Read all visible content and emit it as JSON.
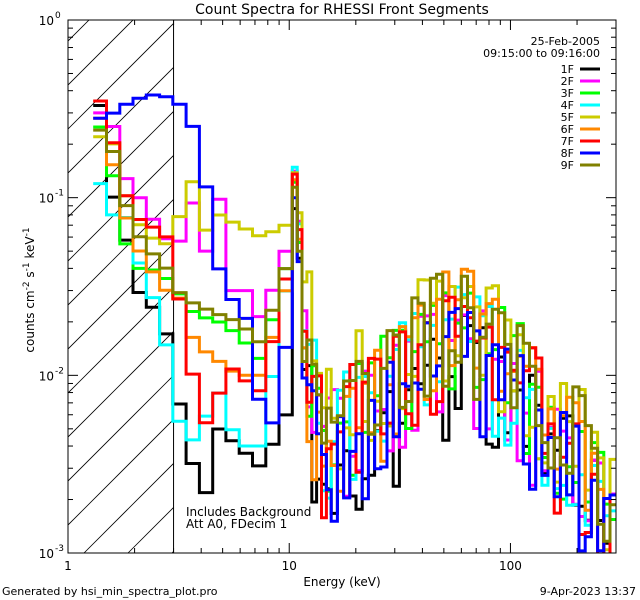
{
  "chart_data": {
    "type": "line",
    "title": "Count Spectra for RHESSI Front Segments",
    "xlabel": "Energy (keV)",
    "ylabel_parts": [
      "counts cm",
      "-2",
      " s",
      "-1",
      " keV",
      "-1"
    ],
    "xscale": "log",
    "yscale": "log",
    "xlim": [
      1,
      300
    ],
    "ylim": [
      0.001,
      1.0
    ],
    "x_ticks": [
      {
        "value": 1,
        "label": "1"
      },
      {
        "value": 10,
        "label": "10"
      },
      {
        "value": 100,
        "label": "100"
      }
    ],
    "y_ticks": [
      {
        "value": 1.0,
        "label": "10",
        "exp": "0"
      },
      {
        "value": 0.1,
        "label": "10",
        "exp": "-1"
      },
      {
        "value": 0.01,
        "label": "10",
        "exp": "-2"
      },
      {
        "value": 0.001,
        "label": "10",
        "exp": "-3"
      }
    ],
    "hatched_region": [
      1,
      3
    ],
    "annotations": [
      "Includes Background",
      "Att A0, FDecim 1"
    ],
    "legend_header": [
      "25-Feb-2005",
      "09:15:00 to 09:16:00"
    ],
    "series": [
      {
        "name": "1F",
        "color": "#000000",
        "low": [
          [
            1.3,
            0.33
          ],
          [
            1.4,
            0.13
          ],
          [
            1.7,
            0.06
          ],
          [
            2.0,
            0.027
          ],
          [
            2.5,
            0.022
          ],
          [
            2.9,
            0.008
          ],
          [
            3.5,
            0.0028
          ],
          [
            4.0,
            0.0021
          ],
          [
            4.5,
            0.005
          ],
          [
            5.5,
            0.004
          ],
          [
            7,
            0.003
          ],
          [
            9,
            0.006
          ],
          [
            10.5,
            0.12
          ],
          [
            11.5,
            0.009
          ],
          [
            14,
            0.0018
          ],
          [
            16,
            0.003
          ],
          [
            20,
            0.004
          ],
          [
            30,
            0.006
          ],
          [
            45,
            0.01
          ],
          [
            60,
            0.012
          ],
          [
            80,
            0.009
          ],
          [
            120,
            0.006
          ],
          [
            200,
            0.003
          ],
          [
            290,
            0.0011
          ]
        ]
      },
      {
        "name": "2F",
        "color": "#ff00ff",
        "low": [
          [
            1.3,
            0.3
          ],
          [
            1.5,
            0.25
          ],
          [
            1.8,
            0.1
          ],
          [
            2.0,
            0.1
          ],
          [
            2.5,
            0.06
          ],
          [
            2.9,
            0.055
          ],
          [
            3.1,
            0.06
          ],
          [
            3.4,
            0.1
          ],
          [
            3.6,
            0.05
          ],
          [
            4.0,
            0.05
          ],
          [
            4.5,
            0.1
          ],
          [
            5.0,
            0.03
          ],
          [
            6,
            0.03
          ],
          [
            7,
            0.02
          ],
          [
            9,
            0.05
          ],
          [
            10.5,
            0.16
          ],
          [
            11.5,
            0.02
          ],
          [
            14,
            0.004
          ],
          [
            20,
            0.006
          ],
          [
            30,
            0.008
          ],
          [
            45,
            0.015
          ],
          [
            60,
            0.016
          ],
          [
            80,
            0.012
          ],
          [
            120,
            0.007
          ],
          [
            200,
            0.003
          ],
          [
            290,
            0.0012
          ]
        ]
      },
      {
        "name": "3F",
        "color": "#00ff00",
        "low": [
          [
            1.3,
            0.25
          ],
          [
            1.5,
            0.13
          ],
          [
            1.8,
            0.04
          ],
          [
            2.2,
            0.04
          ],
          [
            2.6,
            0.035
          ],
          [
            2.9,
            0.03
          ],
          [
            3.5,
            0.022
          ],
          [
            4.5,
            0.02
          ],
          [
            5.5,
            0.017
          ],
          [
            7,
            0.012
          ],
          [
            9,
            0.04
          ],
          [
            10.5,
            0.14
          ],
          [
            11.5,
            0.012
          ],
          [
            14,
            0.004
          ],
          [
            20,
            0.008
          ],
          [
            30,
            0.011
          ],
          [
            45,
            0.018
          ],
          [
            60,
            0.02
          ],
          [
            80,
            0.015
          ],
          [
            120,
            0.009
          ],
          [
            200,
            0.004
          ],
          [
            290,
            0.0015
          ]
        ]
      },
      {
        "name": "4F",
        "color": "#00ffff",
        "low": [
          [
            1.3,
            0.12
          ],
          [
            1.4,
            0.08
          ],
          [
            1.7,
            0.08
          ],
          [
            2.0,
            0.04
          ],
          [
            2.5,
            0.02
          ],
          [
            2.9,
            0.006
          ],
          [
            3.3,
            0.004
          ],
          [
            4.5,
            0.008
          ],
          [
            5.5,
            0.004
          ],
          [
            7,
            0.004
          ],
          [
            9,
            0.03
          ],
          [
            10.5,
            0.18
          ],
          [
            11.5,
            0.015
          ],
          [
            14,
            0.005
          ],
          [
            20,
            0.006
          ],
          [
            30,
            0.01
          ],
          [
            45,
            0.015
          ],
          [
            60,
            0.018
          ],
          [
            80,
            0.013
          ],
          [
            120,
            0.007
          ],
          [
            200,
            0.003
          ],
          [
            290,
            0.0012
          ]
        ]
      },
      {
        "name": "5F",
        "color": "#cccc00",
        "low": [
          [
            1.3,
            0.22
          ],
          [
            1.5,
            0.2
          ],
          [
            1.8,
            0.08
          ],
          [
            2.2,
            0.06
          ],
          [
            2.6,
            0.055
          ],
          [
            2.9,
            0.06
          ],
          [
            3.2,
            0.16
          ],
          [
            3.6,
            0.1
          ],
          [
            4.0,
            0.06
          ],
          [
            4.5,
            0.08
          ],
          [
            5.5,
            0.07
          ],
          [
            7,
            0.06
          ],
          [
            9,
            0.07
          ],
          [
            10.5,
            0.15
          ],
          [
            11.5,
            0.03
          ],
          [
            14,
            0.006
          ],
          [
            20,
            0.01
          ],
          [
            30,
            0.014
          ],
          [
            45,
            0.022
          ],
          [
            60,
            0.024
          ],
          [
            80,
            0.018
          ],
          [
            120,
            0.01
          ],
          [
            200,
            0.005
          ],
          [
            290,
            0.0018
          ]
        ]
      },
      {
        "name": "6F",
        "color": "#ff8800",
        "low": [
          [
            1.3,
            0.28
          ],
          [
            1.5,
            0.15
          ],
          [
            1.8,
            0.06
          ],
          [
            2.2,
            0.04
          ],
          [
            2.6,
            0.03
          ],
          [
            2.9,
            0.03
          ],
          [
            3.5,
            0.015
          ],
          [
            4.5,
            0.012
          ],
          [
            5.5,
            0.01
          ],
          [
            7,
            0.01
          ],
          [
            9,
            0.03
          ],
          [
            10.5,
            0.15
          ],
          [
            11.5,
            0.012
          ],
          [
            14,
            0.003
          ],
          [
            20,
            0.006
          ],
          [
            30,
            0.012
          ],
          [
            45,
            0.02
          ],
          [
            60,
            0.022
          ],
          [
            80,
            0.016
          ],
          [
            120,
            0.009
          ],
          [
            200,
            0.004
          ],
          [
            290,
            0.0014
          ]
        ]
      },
      {
        "name": "7F",
        "color": "#ff0000",
        "low": [
          [
            1.3,
            0.35
          ],
          [
            1.5,
            0.2
          ],
          [
            1.8,
            0.08
          ],
          [
            2.2,
            0.07
          ],
          [
            2.6,
            0.06
          ],
          [
            2.9,
            0.03
          ],
          [
            3.2,
            0.02
          ],
          [
            3.6,
            0.006
          ],
          [
            4.2,
            0.005
          ],
          [
            4.8,
            0.012
          ],
          [
            5.5,
            0.01
          ],
          [
            7,
            0.008
          ],
          [
            9,
            0.035
          ],
          [
            10.5,
            0.16
          ],
          [
            11.5,
            0.015
          ],
          [
            14,
            0.004
          ],
          [
            20,
            0.007
          ],
          [
            30,
            0.009
          ],
          [
            45,
            0.016
          ],
          [
            60,
            0.018
          ],
          [
            80,
            0.013
          ],
          [
            120,
            0.008
          ],
          [
            200,
            0.003
          ],
          [
            290,
            0.0012
          ]
        ]
      },
      {
        "name": "8F",
        "color": "#0000ff",
        "low": [
          [
            1.3,
            0.28
          ],
          [
            1.5,
            0.3
          ],
          [
            1.8,
            0.35
          ],
          [
            2.2,
            0.38
          ],
          [
            2.6,
            0.37
          ],
          [
            2.9,
            0.35
          ],
          [
            3.2,
            0.3
          ],
          [
            3.6,
            0.22
          ],
          [
            4.0,
            0.1
          ],
          [
            4.5,
            0.04
          ],
          [
            5.0,
            0.025
          ],
          [
            5.5,
            0.03
          ],
          [
            6,
            0.02
          ],
          [
            7,
            0.006
          ],
          [
            8.5,
            0.005
          ],
          [
            9.5,
            0.04
          ],
          [
            10.5,
            0.12
          ],
          [
            11.5,
            0.008
          ],
          [
            14,
            0.004
          ],
          [
            20,
            0.004
          ],
          [
            30,
            0.008
          ],
          [
            45,
            0.012
          ],
          [
            60,
            0.014
          ],
          [
            80,
            0.01
          ],
          [
            120,
            0.006
          ],
          [
            200,
            0.003
          ],
          [
            290,
            0.0011
          ]
        ]
      },
      {
        "name": "9F",
        "color": "#808000",
        "low": [
          [
            1.3,
            0.24
          ],
          [
            1.5,
            0.18
          ],
          [
            1.8,
            0.07
          ],
          [
            2.2,
            0.05
          ],
          [
            2.6,
            0.04
          ],
          [
            2.9,
            0.03
          ],
          [
            3.5,
            0.025
          ],
          [
            4.5,
            0.022
          ],
          [
            5.5,
            0.02
          ],
          [
            7,
            0.015
          ],
          [
            9,
            0.04
          ],
          [
            10.5,
            0.13
          ],
          [
            11.5,
            0.01
          ],
          [
            14,
            0.005
          ],
          [
            20,
            0.009
          ],
          [
            30,
            0.012
          ],
          [
            45,
            0.02
          ],
          [
            60,
            0.023
          ],
          [
            80,
            0.017
          ],
          [
            120,
            0.01
          ],
          [
            200,
            0.005
          ],
          [
            290,
            0.0016
          ]
        ]
      }
    ]
  },
  "footer": {
    "generated_by": "Generated by hsi_min_spectra_plot.pro",
    "date": "9-Apr-2023 13:37"
  }
}
